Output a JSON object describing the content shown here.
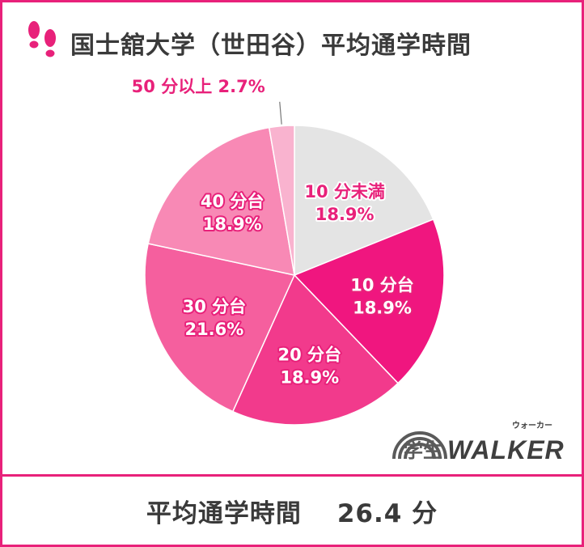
{
  "header": {
    "title": "国士舘大学（世田谷）平均通学時間",
    "icon": "footprints-icon"
  },
  "chart_data": {
    "type": "pie",
    "title": "国士舘大学（世田谷）平均通学時間",
    "start": "top",
    "direction": "clockwise",
    "slices": [
      {
        "label": "10 分未満",
        "value": 18.9,
        "display": "18.9%",
        "color": "#e4e4e4",
        "text_color": "#e8217a"
      },
      {
        "label": "10 分台",
        "value": 18.9,
        "display": "18.9%",
        "color": "#f0167f",
        "text_color": "#ffffff"
      },
      {
        "label": "20 分台",
        "value": 18.9,
        "display": "18.9%",
        "color": "#f23a8c",
        "text_color": "#ffffff"
      },
      {
        "label": "30 分台",
        "value": 21.6,
        "display": "21.6%",
        "color": "#f55f9e",
        "text_color": "#ffffff"
      },
      {
        "label": "40 分台",
        "value": 18.9,
        "display": "18.9%",
        "color": "#f889b5",
        "text_color": "#ffffff"
      },
      {
        "label": "50 分以上",
        "value": 2.7,
        "display": "2.7%",
        "color": "#f9b3cf",
        "text_color": "#e8217a"
      }
    ]
  },
  "summary": {
    "label": "平均通学時間",
    "value": "26.4 分"
  },
  "logo": {
    "main": "学生",
    "brand": "WALKER",
    "ruby": "ウォーカー"
  },
  "colors": {
    "accent": "#e8217a",
    "text": "#3a3a3a"
  }
}
